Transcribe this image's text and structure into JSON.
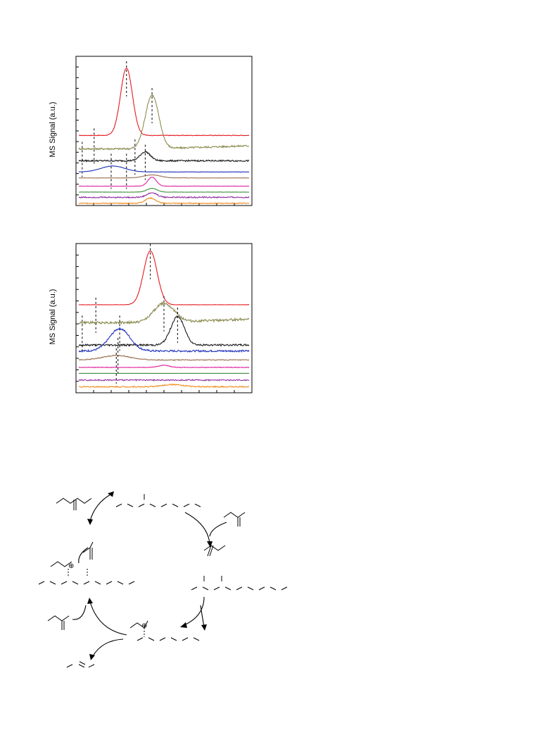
{
  "chart_data": [
    {
      "type": "line",
      "ylabel": "MS Signal (a.u.)",
      "xlabel": "",
      "title": "",
      "grid": false,
      "x_tick_count": 10,
      "y_tick_count": 14,
      "series": [
        {
          "color": "#e8191e",
          "baseline": 0.47,
          "peak_x": 0.28,
          "peak_height": 0.45,
          "width": 0.035,
          "tail": 0.0,
          "noise": 0.002,
          "marker_x": [
            0.09,
            0.28
          ]
        },
        {
          "color": "#8b8b50",
          "baseline": 0.38,
          "peak_x": 0.43,
          "peak_height": 0.36,
          "width": 0.04,
          "tail": 0.06,
          "noise": 0.006,
          "marker_x": [
            0.02,
            0.33,
            0.43
          ]
        },
        {
          "color": "#1a1a1a",
          "baseline": 0.3,
          "peak_x": 0.39,
          "peak_height": 0.06,
          "width": 0.03,
          "tail": 0.0,
          "noise": 0.005,
          "marker_x": [
            0.19,
            0.28,
            0.39
          ]
        },
        {
          "color": "#2233bb",
          "baseline": 0.225,
          "peak_x": 0.2,
          "peak_height": 0.04,
          "width": 0.07,
          "tail": 0.0,
          "noise": 0.001,
          "marker_x": []
        },
        {
          "color": "#9a7050",
          "baseline": 0.185,
          "peak_x": 0.43,
          "peak_height": 0.02,
          "width": 0.05,
          "tail": 0.0,
          "noise": 0.001,
          "marker_x": []
        },
        {
          "color": "#e020a0",
          "baseline": 0.13,
          "peak_x": 0.43,
          "peak_height": 0.06,
          "width": 0.025,
          "tail": 0.0,
          "noise": 0.001,
          "marker_x": []
        },
        {
          "color": "#3c8c3c",
          "baseline": 0.09,
          "peak_x": 0.43,
          "peak_height": 0.025,
          "width": 0.03,
          "tail": 0.0,
          "noise": 0.001,
          "marker_x": []
        },
        {
          "color": "#9030a0",
          "baseline": 0.055,
          "peak_x": 0.43,
          "peak_height": 0.03,
          "width": 0.03,
          "tail": 0.0,
          "noise": 0.004,
          "marker_x": []
        },
        {
          "color": "#f08c1e",
          "baseline": 0.015,
          "peak_x": 0.42,
          "peak_height": 0.035,
          "width": 0.03,
          "tail": 0.0,
          "noise": 0.003,
          "marker_x": []
        }
      ]
    },
    {
      "type": "line",
      "ylabel": "MS Signal (a.u.)",
      "xlabel": "",
      "title": "",
      "grid": false,
      "x_tick_count": 10,
      "y_tick_count": 13,
      "series": [
        {
          "color": "#e8191e",
          "baseline": 0.59,
          "peak_x": 0.42,
          "peak_height": 0.36,
          "width": 0.04,
          "tail": 0.0,
          "noise": 0.001,
          "marker_x": [
            0.1,
            0.42
          ]
        },
        {
          "color": "#8b8b50",
          "baseline": 0.47,
          "peak_x": 0.5,
          "peak_height": 0.13,
          "width": 0.06,
          "tail": 0.08,
          "noise": 0.008,
          "marker_x": [
            0.02,
            0.24,
            0.5,
            0.58
          ]
        },
        {
          "color": "#1a1a1a",
          "baseline": 0.32,
          "peak_x": 0.58,
          "peak_height": 0.19,
          "width": 0.04,
          "tail": 0.0,
          "noise": 0.006,
          "marker_x": [
            0.23
          ]
        },
        {
          "color": "#2233bb",
          "baseline": 0.28,
          "peak_x": 0.24,
          "peak_height": 0.15,
          "width": 0.06,
          "tail": 0.0,
          "noise": 0.006,
          "marker_x": []
        },
        {
          "color": "#9a7050",
          "baseline": 0.22,
          "peak_x": 0.22,
          "peak_height": 0.03,
          "width": 0.08,
          "tail": 0.0,
          "noise": 0.003,
          "marker_x": [
            0.22
          ]
        },
        {
          "color": "#e020a0",
          "baseline": 0.17,
          "peak_x": 0.5,
          "peak_height": 0.015,
          "width": 0.03,
          "tail": 0.0,
          "noise": 0.002,
          "marker_x": []
        },
        {
          "color": "#3c8c3c",
          "baseline": 0.13,
          "peak_x": 0.5,
          "peak_height": 0.0,
          "width": 0.03,
          "tail": 0.0,
          "noise": 0.0,
          "marker_x": []
        },
        {
          "color": "#9030a0",
          "baseline": 0.085,
          "peak_x": 0.5,
          "peak_height": 0.0,
          "width": 0.03,
          "tail": 0.0,
          "noise": 0.004,
          "marker_x": []
        },
        {
          "color": "#f08c1e",
          "baseline": 0.04,
          "peak_x": 0.55,
          "peak_height": 0.015,
          "width": 0.06,
          "tail": 0.0,
          "noise": 0.004,
          "marker_x": []
        }
      ]
    }
  ],
  "scheme": {
    "charges": [
      "⊕",
      "⊕",
      "⊕"
    ]
  }
}
